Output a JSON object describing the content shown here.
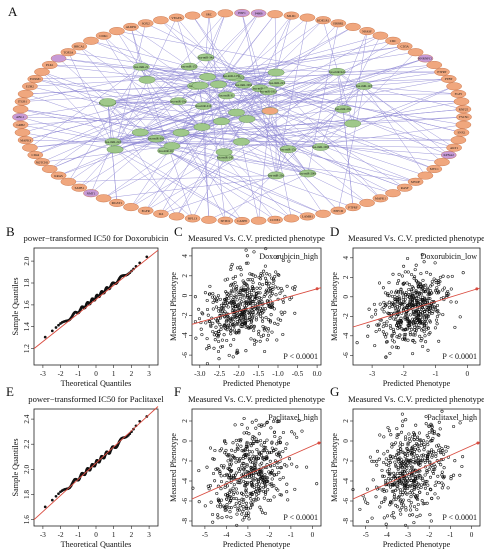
{
  "panel_letters": {
    "A": "A",
    "B": "B",
    "C": "C",
    "D": "D",
    "E": "E",
    "F": "F",
    "G": "G"
  },
  "network": {
    "gene_labels_visible": [
      "HSF1",
      "P4HB",
      "MLD1",
      "KDELR1",
      "ERBB2",
      "NFASF",
      "CDC",
      "CD5A",
      "HNRNPC1",
      "PTPRT",
      "PTBT",
      "FGF5",
      "RNF25",
      "FSCN1",
      "SNX1",
      "AKT1",
      "KPNA2",
      "MYC1",
      "MYOF",
      "RASF",
      "MAPK1",
      "PTPRF",
      "EEF1D",
      "LAMB1",
      "CCNE1",
      "CASP8",
      "SETD1",
      "RPL13",
      "IL6",
      "EGFR",
      "MGST1",
      "NMT1",
      "SATB1",
      "KRAS",
      "NOTCH1",
      "CD44",
      "MAPK3",
      "GRB2",
      "ABL1",
      "ITGB1",
      "EZH2",
      "FOXM1",
      "PLK1",
      "TOP2A",
      "BRCA1",
      "CDK1",
      "ALDH1",
      "SOX2",
      "VEGFA",
      "SRC"
    ],
    "inner_labels_visible": [
      "hsa-let-7b",
      "hsa-miR-21",
      "hsa-miR-155",
      "hsa-miR-200c",
      "hsa-miR-34a",
      "hsa-miR-221",
      "hsa-miR-17",
      "hsa-miR-19a",
      "hsa-miR-20a",
      "hsa-miR-92a",
      "hsa-miR-106b",
      "hsa-miR-125b",
      "hsa-miR-145",
      "hsa-miR-143",
      "hsa-miR-30a",
      "hsa-miR-181a",
      "hsa-miR-15a",
      "hsa-miR-16",
      "hsa-miR-29a",
      "hsa-miR-199a",
      "hsa-miR-222",
      "hsa-miR-223",
      "hsa-miR-146a",
      "hsa-miR-31",
      "hsa-miR-210"
    ],
    "colors": {
      "outer": "#f0a77e",
      "outer_stroke": "#c26a3f",
      "highlight": "#c79ad6",
      "inner": "#9fc88a",
      "edge": "#6f66c8"
    }
  },
  "chart_data": [
    {
      "id": "B",
      "type": "scatter",
      "title": "power−transformed IC50  for Doxorubicin",
      "xlabel": "Theoretical Quantiles",
      "ylabel": "Sample Quantiles",
      "xlim": [
        -3.5,
        3.5
      ],
      "ylim": [
        1.05,
        2.12
      ],
      "xticks": [
        -3,
        -2,
        -1,
        0,
        1,
        2,
        3
      ],
      "yticks": [
        1.2,
        1.4,
        1.6,
        1.8,
        2.0
      ],
      "qq": {
        "lo": 1.2,
        "hi": 2.05,
        "ref": [
          [
            -3.5,
            1.2
          ],
          [
            3.5,
            2.1
          ]
        ]
      }
    },
    {
      "id": "C",
      "type": "scatter",
      "title": "Measured Vs. C.V. predicted phenotype",
      "legend": "Doxorubicin_high",
      "annotation": "P < 0.0001",
      "xlabel": "Predicted Phenotype",
      "ylabel": "Measured Phenotype",
      "xlim": [
        -3.2,
        0.1
      ],
      "ylim": [
        -7,
        4.8
      ],
      "xticks": [
        -3.0,
        -2.5,
        -2.0,
        -1.5,
        -1.0,
        -0.5,
        0.0
      ],
      "yticks": [
        -6,
        -4,
        -2,
        0,
        2,
        4
      ],
      "center": [
        -1.9,
        -1.3
      ],
      "spread": [
        0.5,
        1.8
      ],
      "fit": [
        [
          -3.2,
          -2.9
        ],
        [
          0.1,
          0.8
        ]
      ]
    },
    {
      "id": "D",
      "type": "scatter",
      "title": "Measured Vs. C.V. predicted phenotype",
      "legend": "Doxorubicin_low",
      "annotation": "P < 0.0001",
      "xlabel": "Predicted Phenotype",
      "ylabel": "Measured Phenotype",
      "xlim": [
        -3.6,
        0.4
      ],
      "ylim": [
        -7,
        5
      ],
      "xticks": [
        -3,
        -2,
        -1,
        0
      ],
      "yticks": [
        -6,
        -4,
        -2,
        0,
        2,
        4
      ],
      "center": [
        -1.7,
        -1.2
      ],
      "spread": [
        0.55,
        1.9
      ],
      "fit": [
        [
          -3.6,
          -3.1
        ],
        [
          0.4,
          0.9
        ]
      ]
    },
    {
      "id": "E",
      "type": "scatter",
      "title": "power−transformed IC50  for Paclitaxel",
      "xlabel": "Theoretical Quantiles",
      "ylabel": "Sample Quantiles",
      "xlim": [
        -3.5,
        3.5
      ],
      "ylim": [
        1.55,
        2.48
      ],
      "xticks": [
        -3,
        -2,
        -1,
        0,
        1,
        2,
        3
      ],
      "yticks": [
        1.6,
        1.8,
        2.0,
        2.2,
        2.4
      ],
      "qq": {
        "lo": 1.6,
        "hi": 2.42,
        "ref": [
          [
            -3.5,
            1.6
          ],
          [
            3.5,
            2.5
          ]
        ]
      }
    },
    {
      "id": "F",
      "type": "scatter",
      "title": "Measured Vs. C.V. predicted phenotype",
      "legend": "Paclitaxel_high",
      "annotation": "P < 0.0001",
      "xlabel": "Predicted Phenotype",
      "ylabel": "Measured Phenotype",
      "xlim": [
        -5.6,
        0.4
      ],
      "ylim": [
        -8.5,
        3.2
      ],
      "xticks": [
        -5,
        -4,
        -3,
        -2,
        -1,
        0
      ],
      "yticks": [
        -8,
        -6,
        -4,
        -2,
        0,
        2
      ],
      "center": [
        -2.9,
        -3.2
      ],
      "spread": [
        0.9,
        2.3
      ],
      "fit": [
        [
          -5.6,
          -5.8
        ],
        [
          0.4,
          -0.1
        ]
      ]
    },
    {
      "id": "G",
      "type": "scatter",
      "title": "Measured Vs. C.V. predicted phenotype",
      "legend": "Paclitaxel_high",
      "annotation": "P < 0.0001",
      "xlabel": "Predicted Phenotype",
      "ylabel": "Measured Phenotype",
      "xlim": [
        -5.6,
        0.4
      ],
      "ylim": [
        -8.5,
        3.2
      ],
      "xticks": [
        -5,
        -4,
        -3,
        -2,
        -1,
        0
      ],
      "yticks": [
        -8,
        -6,
        -4,
        -2,
        0,
        2
      ],
      "center": [
        -2.9,
        -3.2
      ],
      "spread": [
        0.9,
        2.3
      ],
      "fit": [
        [
          -5.6,
          -5.8
        ],
        [
          0.4,
          -0.1
        ]
      ]
    }
  ]
}
